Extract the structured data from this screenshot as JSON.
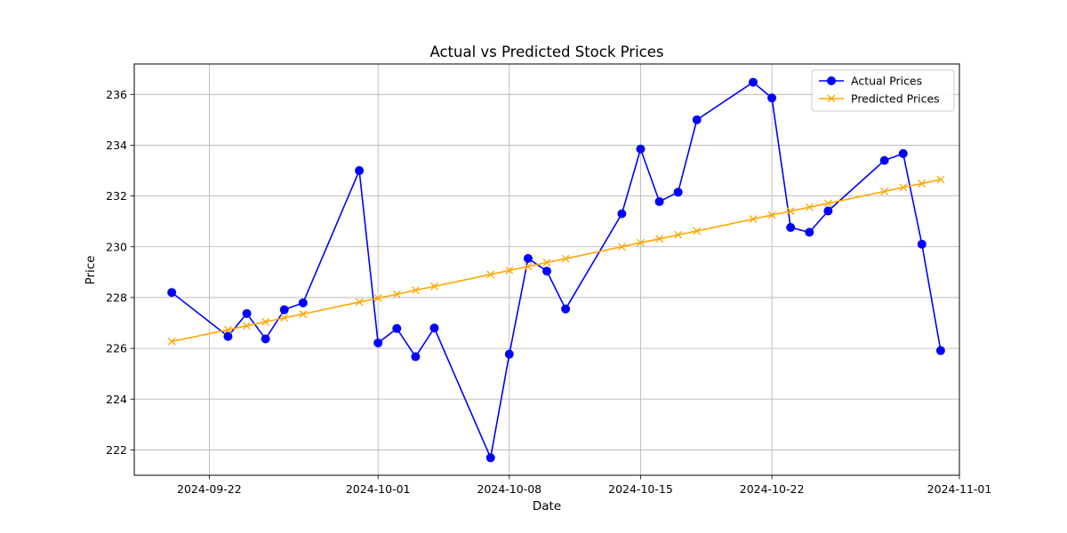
{
  "chart_data": {
    "type": "line",
    "title": "Actual vs Predicted Stock Prices",
    "xlabel": "Date",
    "ylabel": "Price",
    "x_ticks": [
      "2024-09-22",
      "2024-10-01",
      "2024-10-08",
      "2024-10-15",
      "2024-10-22",
      "2024-11-01"
    ],
    "y_ticks": [
      "222",
      "224",
      "226",
      "228",
      "230",
      "232",
      "234",
      "236"
    ],
    "ylim": [
      221.0,
      237.2
    ],
    "xlim": [
      "2024-09-18",
      "2024-11-01"
    ],
    "grid": true,
    "legend_position": "top-right",
    "series": [
      {
        "name": "Actual Prices",
        "color": "#0000ff",
        "marker": "circle",
        "points": [
          {
            "x": "2024-09-20",
            "y": 228.2
          },
          {
            "x": "2024-09-23",
            "y": 226.47
          },
          {
            "x": "2024-09-24",
            "y": 227.37
          },
          {
            "x": "2024-09-25",
            "y": 226.37
          },
          {
            "x": "2024-09-26",
            "y": 227.52
          },
          {
            "x": "2024-09-27",
            "y": 227.79
          },
          {
            "x": "2024-09-30",
            "y": 233.0
          },
          {
            "x": "2024-10-01",
            "y": 226.21
          },
          {
            "x": "2024-10-02",
            "y": 226.78
          },
          {
            "x": "2024-10-03",
            "y": 225.67
          },
          {
            "x": "2024-10-04",
            "y": 226.8
          },
          {
            "x": "2024-10-07",
            "y": 221.69
          },
          {
            "x": "2024-10-08",
            "y": 225.77
          },
          {
            "x": "2024-10-09",
            "y": 229.54
          },
          {
            "x": "2024-10-10",
            "y": 229.04
          },
          {
            "x": "2024-10-11",
            "y": 227.55
          },
          {
            "x": "2024-10-14",
            "y": 231.3
          },
          {
            "x": "2024-10-15",
            "y": 233.85
          },
          {
            "x": "2024-10-16",
            "y": 231.78
          },
          {
            "x": "2024-10-17",
            "y": 232.15
          },
          {
            "x": "2024-10-18",
            "y": 235.0
          },
          {
            "x": "2024-10-21",
            "y": 236.48
          },
          {
            "x": "2024-10-22",
            "y": 235.86
          },
          {
            "x": "2024-10-23",
            "y": 230.76
          },
          {
            "x": "2024-10-24",
            "y": 230.57
          },
          {
            "x": "2024-10-25",
            "y": 231.41
          },
          {
            "x": "2024-10-28",
            "y": 233.4
          },
          {
            "x": "2024-10-29",
            "y": 233.67
          },
          {
            "x": "2024-10-30",
            "y": 230.1
          },
          {
            "x": "2024-10-31",
            "y": 225.91
          }
        ]
      },
      {
        "name": "Predicted Prices",
        "color": "#ffa500",
        "marker": "x",
        "points": [
          {
            "x": "2024-09-20",
            "y": 226.27
          },
          {
            "x": "2024-09-23",
            "y": 226.73
          },
          {
            "x": "2024-09-24",
            "y": 226.89
          },
          {
            "x": "2024-09-25",
            "y": 227.04
          },
          {
            "x": "2024-09-26",
            "y": 227.2
          },
          {
            "x": "2024-09-27",
            "y": 227.35
          },
          {
            "x": "2024-09-30",
            "y": 227.82
          },
          {
            "x": "2024-10-01",
            "y": 227.98
          },
          {
            "x": "2024-10-02",
            "y": 228.13
          },
          {
            "x": "2024-10-03",
            "y": 228.29
          },
          {
            "x": "2024-10-04",
            "y": 228.44
          },
          {
            "x": "2024-10-07",
            "y": 228.91
          },
          {
            "x": "2024-10-08",
            "y": 229.07
          },
          {
            "x": "2024-10-09",
            "y": 229.22
          },
          {
            "x": "2024-10-10",
            "y": 229.38
          },
          {
            "x": "2024-10-11",
            "y": 229.53
          },
          {
            "x": "2024-10-14",
            "y": 230.0
          },
          {
            "x": "2024-10-15",
            "y": 230.16
          },
          {
            "x": "2024-10-16",
            "y": 230.31
          },
          {
            "x": "2024-10-17",
            "y": 230.47
          },
          {
            "x": "2024-10-18",
            "y": 230.62
          },
          {
            "x": "2024-10-21",
            "y": 231.09
          },
          {
            "x": "2024-10-22",
            "y": 231.25
          },
          {
            "x": "2024-10-23",
            "y": 231.4
          },
          {
            "x": "2024-10-24",
            "y": 231.56
          },
          {
            "x": "2024-10-25",
            "y": 231.71
          },
          {
            "x": "2024-10-28",
            "y": 232.18
          },
          {
            "x": "2024-10-29",
            "y": 232.34
          },
          {
            "x": "2024-10-30",
            "y": 232.49
          },
          {
            "x": "2024-10-31",
            "y": 232.65
          }
        ]
      }
    ]
  }
}
